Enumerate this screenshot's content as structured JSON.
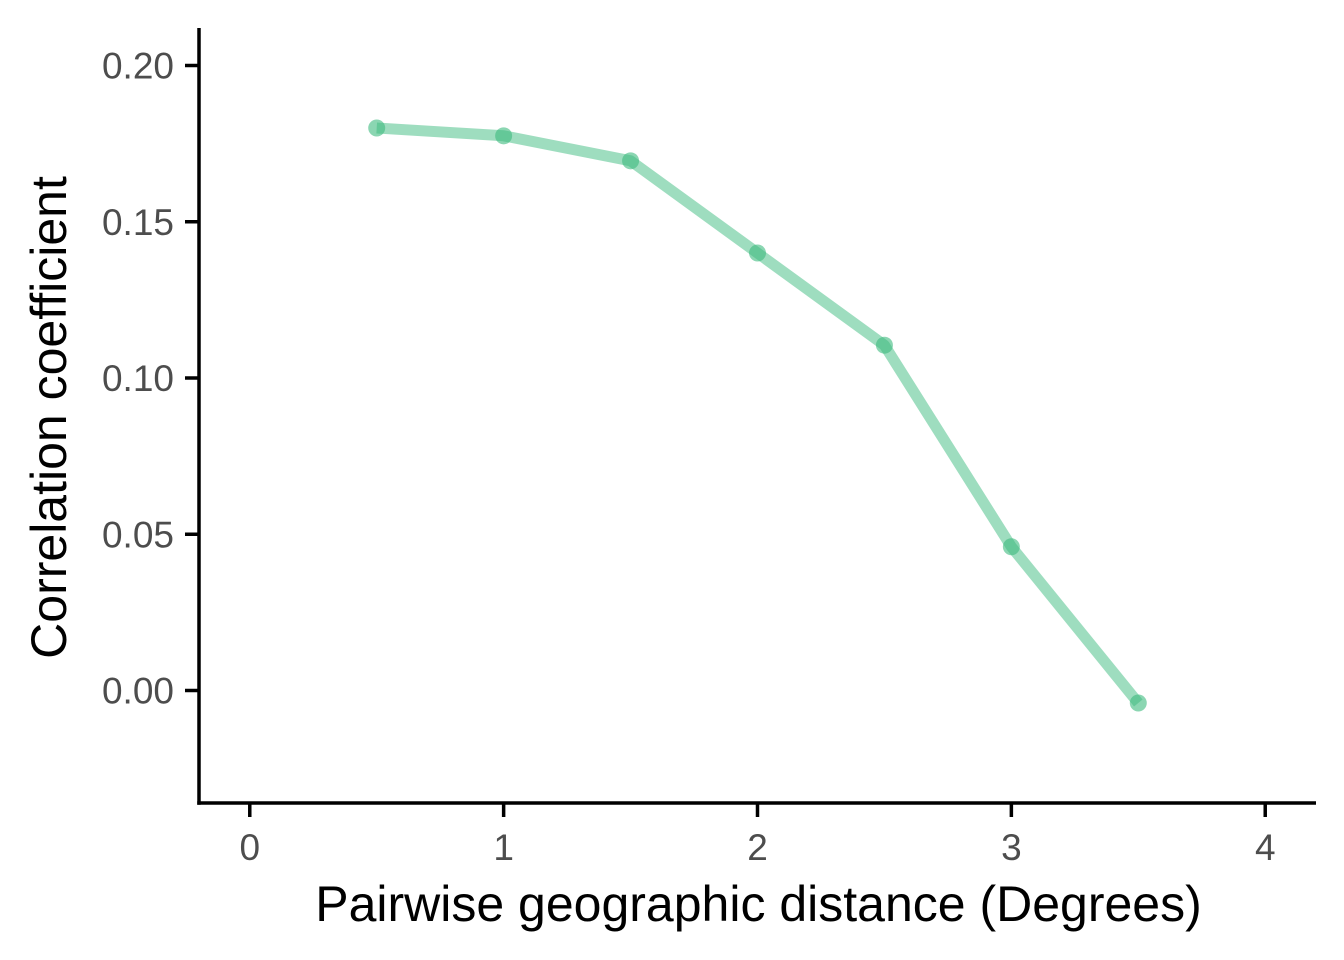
{
  "chart_data": {
    "type": "line",
    "title": "",
    "xlabel": "Pairwise geographic distance (Degrees)",
    "ylabel": "Correlation coefficient",
    "xlim": [
      -0.2,
      4.2
    ],
    "ylim": [
      -0.036,
      0.212
    ],
    "x_ticks": [
      0,
      1,
      2,
      3,
      4
    ],
    "x_tick_labels": [
      "0",
      "1",
      "2",
      "3",
      "4"
    ],
    "y_ticks": [
      0.0,
      0.05,
      0.1,
      0.15,
      0.2
    ],
    "y_tick_labels": [
      "0.00",
      "0.05",
      "0.10",
      "0.15",
      "0.20"
    ],
    "grid": false,
    "legend": "none",
    "series": [
      {
        "color": "#3dbb7f",
        "x": [
          0.5,
          1.0,
          1.5,
          2.0,
          2.5,
          3.0,
          3.5
        ],
        "y": [
          0.18,
          0.1775,
          0.1695,
          0.14,
          0.1105,
          0.046,
          -0.004
        ]
      }
    ]
  }
}
